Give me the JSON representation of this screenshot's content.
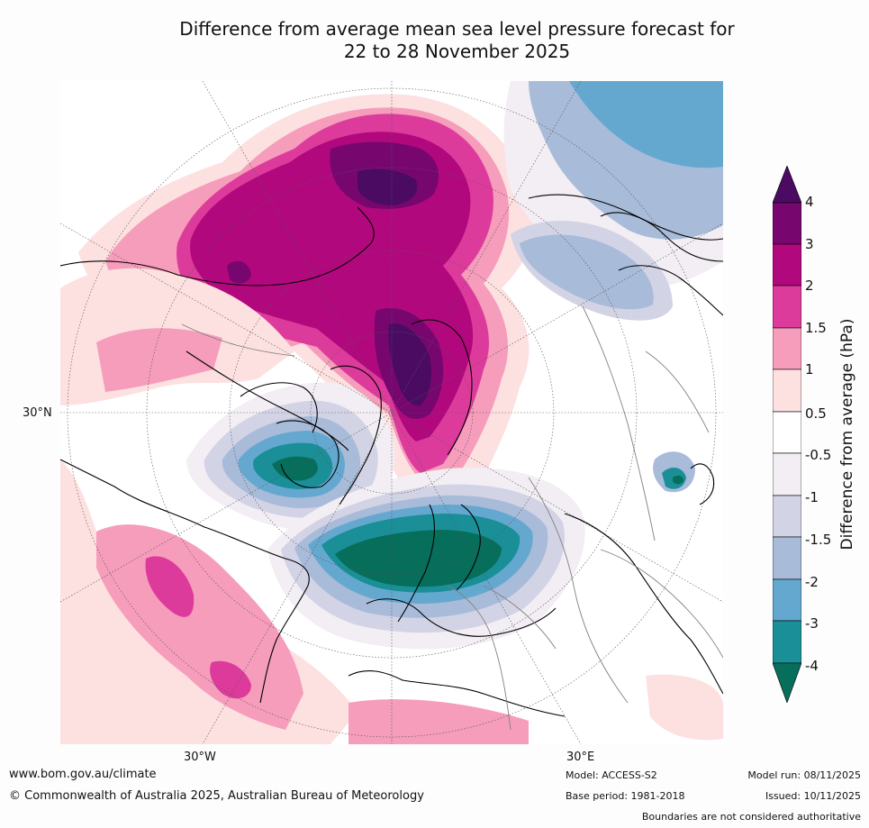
{
  "title": {
    "line1": "Difference from average mean sea level pressure forecast for",
    "line2": "22 to 28 November 2025"
  },
  "map": {
    "lat_label": "30°N",
    "lon_labels": {
      "west": "30°W",
      "east": "30°E"
    },
    "colors": {
      "ocean_bg": "#ffffff",
      "coast": "#000000",
      "borders": "#808080",
      "grid": "#555555"
    }
  },
  "colorbar": {
    "label": "Difference from average (hPa)",
    "ticks": [
      "4",
      "3",
      "2",
      "1.5",
      "1",
      "0.5",
      "-0.5",
      "-1",
      "-1.5",
      "-2",
      "-3",
      "-4"
    ],
    "bins_top_to_bottom": [
      {
        "range": "> 4",
        "color": "#4b0b63"
      },
      {
        "range": "3 to 4",
        "color": "#77076f"
      },
      {
        "range": "2 to 3",
        "color": "#b2087e"
      },
      {
        "range": "1.5 to 2",
        "color": "#dd3b9c"
      },
      {
        "range": "1 to 1.5",
        "color": "#f59dbb"
      },
      {
        "range": "0.5 to 1",
        "color": "#fde0e0"
      },
      {
        "range": "-0.5 to 0.5",
        "color": "#ffffff"
      },
      {
        "range": "-1 to -0.5",
        "color": "#f2eef4"
      },
      {
        "range": "-1.5 to -1",
        "color": "#d3d3e6"
      },
      {
        "range": "-2 to -1.5",
        "color": "#a8bbd9"
      },
      {
        "range": "-3 to -2",
        "color": "#65a8cf"
      },
      {
        "range": "-4 to -3",
        "color": "#1b8f97"
      },
      {
        "range": "< -4",
        "color": "#066e5a"
      }
    ]
  },
  "footer": {
    "website": "www.bom.gov.au/climate",
    "copyright": "© Commonwealth of Australia 2025, Australian Bureau of Meteorology",
    "model": "Model: ACCESS-S2",
    "base_period": "Base period: 1981-2018",
    "model_run": "Model run: 08/11/2025",
    "issued": "Issued: 10/11/2025",
    "disclaimer": "Boundaries are not considered authoritative"
  }
}
